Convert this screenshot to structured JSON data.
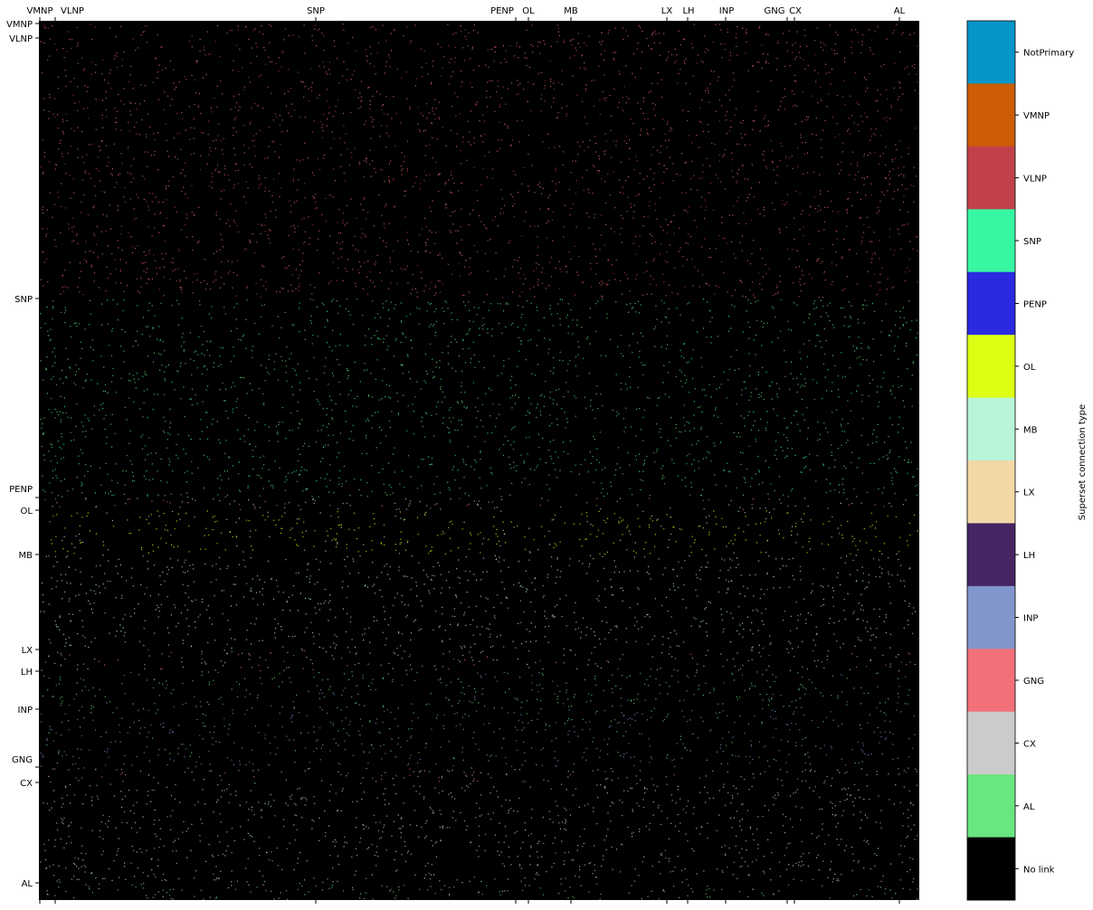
{
  "chart_data": {
    "type": "heatmap",
    "title": "",
    "xlabel": "",
    "ylabel": "",
    "matrix_note": "",
    "x_tick_labels": [
      "VMNP",
      "VLNP",
      "SNP",
      "PENP",
      "OL",
      "MB",
      "LX",
      "LH",
      "INP",
      "GNG",
      "CX",
      "AL"
    ],
    "y_tick_labels": [
      "VMNP",
      "VLNP",
      "SNP",
      "PENP",
      "OL",
      "MB",
      "LX",
      "LH",
      "INP",
      "GNG",
      "CX",
      "AL"
    ],
    "colorbar": {
      "label": "Superset connection type",
      "categories": [
        {
          "name": "NotPrimary",
          "color": "#0696c8"
        },
        {
          "name": "VMNP",
          "color": "#cc5c05"
        },
        {
          "name": "VLNP",
          "color": "#c0414a"
        },
        {
          "name": "SNP",
          "color": "#37f7a3"
        },
        {
          "name": "PENP",
          "color": "#2b2ae1"
        },
        {
          "name": "OL",
          "color": "#dcff14"
        },
        {
          "name": "MB",
          "color": "#b8f5d8"
        },
        {
          "name": "LX",
          "color": "#f2d8a6"
        },
        {
          "name": "LH",
          "color": "#462564"
        },
        {
          "name": "INP",
          "color": "#8396cc"
        },
        {
          "name": "GNG",
          "color": "#f27179"
        },
        {
          "name": "CX",
          "color": "#cbcbcb"
        },
        {
          "name": "AL",
          "color": "#68e680"
        },
        {
          "name": "No link",
          "color": "#000000"
        }
      ]
    },
    "background_color": "#000000",
    "grid": false
  }
}
